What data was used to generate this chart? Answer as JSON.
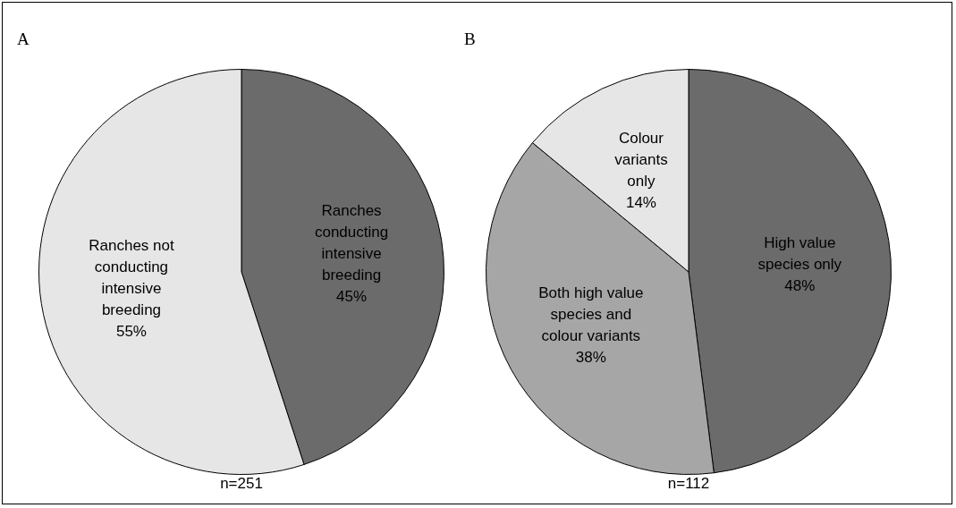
{
  "chart_data": [
    {
      "type": "pie",
      "title": "A",
      "categories": [
        "Ranches conducting intensive breeding",
        "Ranches not conducting intensive breeding"
      ],
      "values": [
        45,
        55
      ],
      "value_labels": [
        "45%",
        "55%"
      ],
      "colors": [
        "#6b6b6b",
        "#e6e6e6"
      ],
      "legend": false,
      "annotations": [
        "n=251"
      ]
    },
    {
      "type": "pie",
      "title": "B",
      "categories": [
        "High value species only",
        "Both high value species and colour variants",
        "Colour variants only"
      ],
      "values": [
        48,
        38,
        14
      ],
      "value_labels": [
        "48%",
        "38%",
        "14%"
      ],
      "colors": [
        "#6b6b6b",
        "#a6a6a6",
        "#e6e6e6"
      ],
      "legend": false,
      "annotations": [
        "n=112"
      ]
    }
  ]
}
